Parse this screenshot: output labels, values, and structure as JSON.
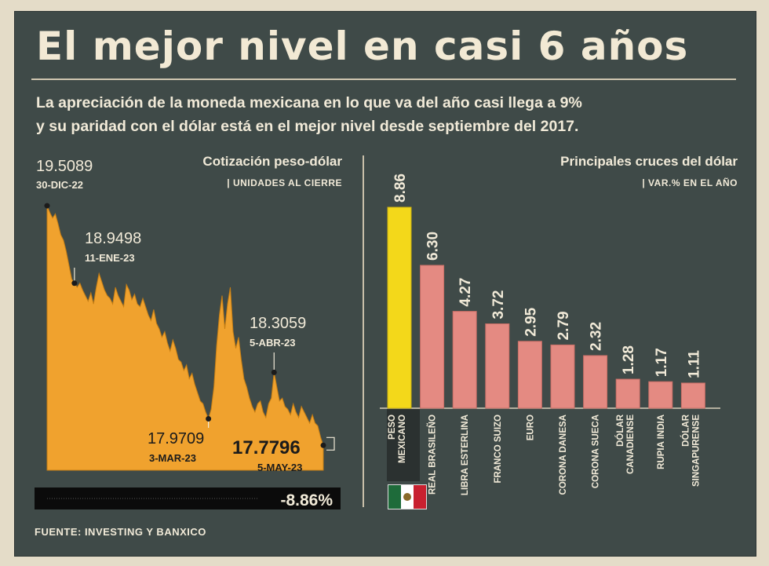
{
  "title": "El mejor nivel en casi 6 años",
  "subtitle_line1": "La apreciación de la moneda mexicana en lo que va del año casi llega a 9%",
  "subtitle_line2": "y su paridad con el dólar está en el mejor nivel desde septiembre del 2017.",
  "source": "FUENTE: INVESTING Y BANXICO",
  "colors": {
    "background": "#3f4a48",
    "area": "#f0a22e",
    "bar": "#e48a82",
    "highlight_bar": "#f3d81a",
    "text": "#f1ead8"
  },
  "chart_data": [
    {
      "type": "area",
      "title": "Cotización peso-dólar",
      "subtitle": "| UNIDADES AL CIERRE",
      "ylim": [
        17.6,
        19.6
      ],
      "points": [
        19.5089,
        19.46,
        19.42,
        19.45,
        19.38,
        19.3,
        19.26,
        19.18,
        19.08,
        18.98,
        18.9498,
        18.92,
        18.95,
        18.9,
        18.86,
        18.82,
        18.88,
        18.8,
        18.92,
        19.02,
        18.96,
        18.9,
        18.86,
        18.84,
        18.8,
        18.92,
        18.86,
        18.82,
        18.78,
        18.94,
        18.9,
        18.83,
        18.87,
        18.8,
        18.78,
        18.84,
        18.78,
        18.72,
        18.68,
        18.76,
        18.66,
        18.62,
        18.56,
        18.6,
        18.52,
        18.46,
        18.54,
        18.48,
        18.4,
        18.38,
        18.32,
        18.36,
        18.26,
        18.3,
        18.22,
        18.16,
        18.1,
        18.08,
        18.02,
        17.9709,
        18.04,
        18.2,
        18.5,
        18.72,
        18.86,
        18.62,
        18.8,
        18.92,
        18.6,
        18.48,
        18.56,
        18.4,
        18.26,
        18.2,
        18.12,
        18.06,
        18.02,
        18.08,
        18.1,
        18.02,
        17.98,
        18.08,
        18.12,
        18.3059,
        18.2,
        18.1,
        18.12,
        18.06,
        18.04,
        18.0,
        18.08,
        18.02,
        17.98,
        18.06,
        18.02,
        17.98,
        17.94,
        18.0,
        17.94,
        17.92,
        17.84,
        17.7796
      ],
      "annotations": [
        {
          "value": "19.5089",
          "date": "30-DIC-22"
        },
        {
          "value": "18.9498",
          "date": "11-ENE-23"
        },
        {
          "value": "17.9709",
          "date": "3-MAR-23"
        },
        {
          "value": "18.3059",
          "date": "5-ABR-23"
        },
        {
          "value": "17.7796",
          "date": "5-MAY-23"
        }
      ],
      "change": "-8.86%"
    },
    {
      "type": "bar",
      "title": "Principales cruces del dólar",
      "subtitle": "| VAR.% EN EL AÑO",
      "ylim": [
        0,
        9
      ],
      "categories": [
        "PESO MEXICANO",
        "REAL BRASILEÑO",
        "LIBRA ESTERLINA",
        "FRANCO SUIZO",
        "EURO",
        "CORONA DANESA",
        "CORONA SUECA",
        "DÓLAR CANADIENSE",
        "RUPIA INDIA",
        "DÓLAR SINGAPURENSE"
      ],
      "values": [
        8.86,
        6.3,
        4.27,
        3.72,
        2.95,
        2.79,
        2.32,
        1.28,
        1.17,
        1.11
      ]
    }
  ]
}
